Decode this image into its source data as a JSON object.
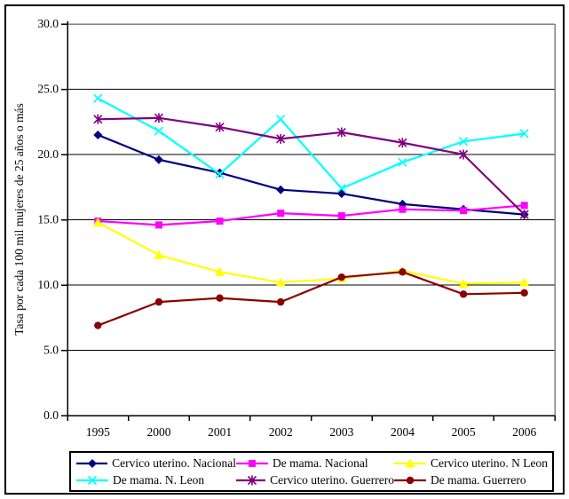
{
  "chart_data": {
    "type": "line",
    "title": "",
    "xlabel": "",
    "ylabel": "Tasa por cada 100 mil mujeres de 25 años o más",
    "categories": [
      "1995",
      "2000",
      "2001",
      "2002",
      "2003",
      "2004",
      "2005",
      "2006"
    ],
    "ylim": [
      0,
      30
    ],
    "ytick_step": 5,
    "ytick_labels": [
      "0.0",
      "5.0",
      "10.0",
      "15.0",
      "20.0",
      "25.0",
      "30.0"
    ],
    "grid": true,
    "legend_position": "bottom",
    "axis_color": "#000000",
    "plot_border_color": "#808080",
    "series": [
      {
        "name": "Cervico uterino. Nacional",
        "color": "#000080",
        "marker": "diamond",
        "values": [
          21.5,
          19.6,
          18.6,
          17.3,
          17.0,
          16.2,
          15.8,
          15.4
        ]
      },
      {
        "name": "De mama. Nacional",
        "color": "#FF00FF",
        "marker": "square",
        "values": [
          14.9,
          14.6,
          14.9,
          15.5,
          15.3,
          15.8,
          15.7,
          16.1
        ]
      },
      {
        "name": "Cervico uterino. N Leon",
        "color": "#FFFF00",
        "marker": "triangle",
        "values": [
          14.8,
          12.3,
          11.0,
          10.2,
          10.5,
          11.1,
          10.1,
          10.2
        ]
      },
      {
        "name": "De mama. N. Leon",
        "color": "#00FFFF",
        "marker": "x",
        "values": [
          24.3,
          21.8,
          18.5,
          22.7,
          17.4,
          19.4,
          21.0,
          21.6
        ]
      },
      {
        "name": "Cervico uterino. Guerrero",
        "color": "#800080",
        "marker": "star",
        "values": [
          22.7,
          22.8,
          22.1,
          21.2,
          21.7,
          20.9,
          20.0,
          15.4
        ]
      },
      {
        "name": "De mama. Guerrero",
        "color": "#8B0000",
        "marker": "circle",
        "values": [
          6.9,
          8.7,
          9.0,
          8.7,
          10.6,
          11.0,
          9.3,
          9.4
        ]
      }
    ]
  }
}
